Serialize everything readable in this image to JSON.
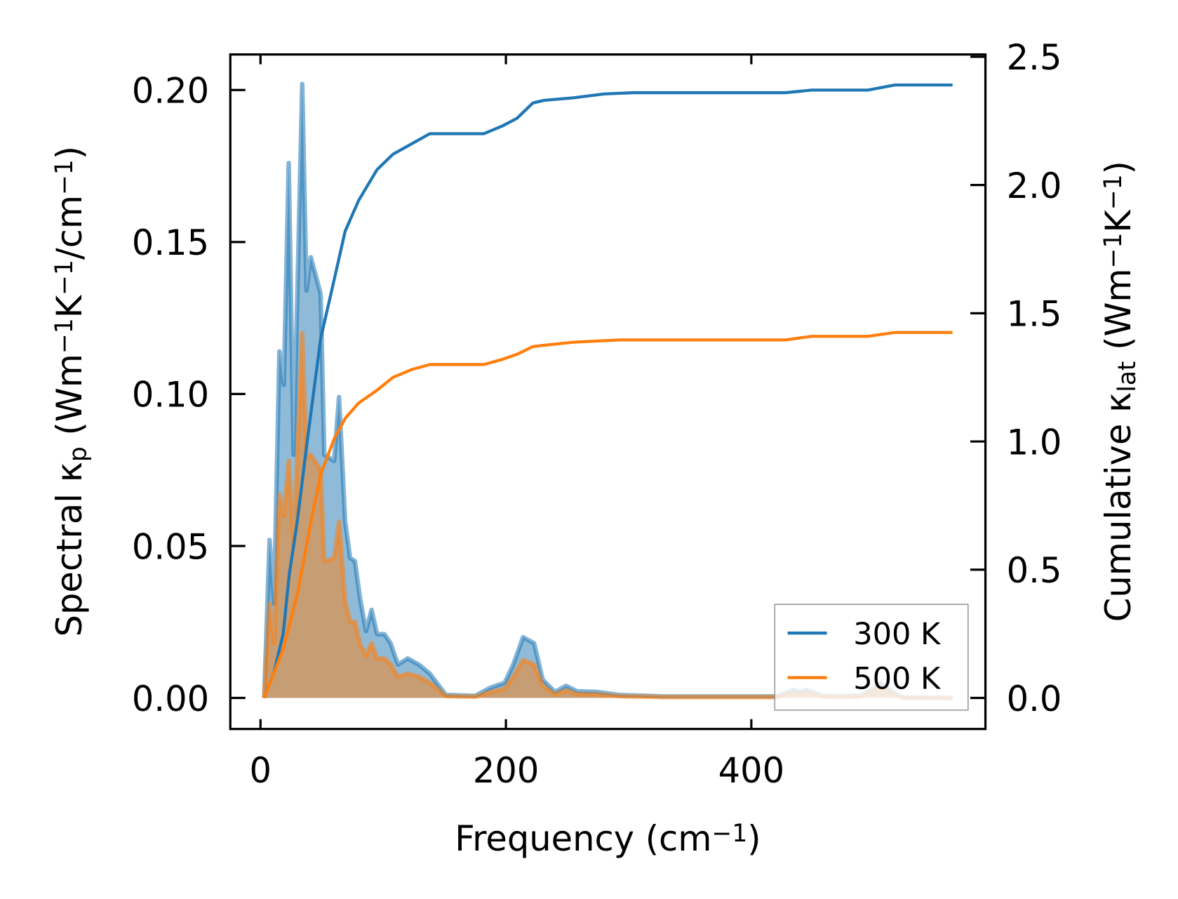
{
  "chart_data": {
    "type": "line",
    "title": "",
    "xlabel": [
      {
        "t": "Frequency (cm"
      },
      {
        "t": "−1",
        "s": "sup"
      },
      {
        "t": ")"
      }
    ],
    "ylabel_left": [
      {
        "t": "Spectral κ"
      },
      {
        "t": "p",
        "s": "sub"
      },
      {
        "t": " (Wm"
      },
      {
        "t": "−1",
        "s": "sup"
      },
      {
        "t": "K"
      },
      {
        "t": "−1",
        "s": "sup"
      },
      {
        "t": "/cm"
      },
      {
        "t": "−1",
        "s": "sup"
      },
      {
        "t": ")"
      }
    ],
    "ylabel_right": [
      {
        "t": "Cumulative κ"
      },
      {
        "t": "lat",
        "s": "sub"
      },
      {
        "t": " (Wm"
      },
      {
        "t": "−1",
        "s": "sup"
      },
      {
        "t": "K"
      },
      {
        "t": "−1",
        "s": "sup"
      },
      {
        "t": ")"
      }
    ],
    "xlim": [
      -24.6,
      590.8
    ],
    "ylim_left": [
      -0.0102,
      0.2117
    ],
    "ylim_right": [
      -0.121,
      2.509
    ],
    "xticks": [
      0,
      200,
      400
    ],
    "xtick_labels": [
      "0",
      "200",
      "400"
    ],
    "yticks_left": [
      0,
      0.05,
      0.1,
      0.15,
      0.2
    ],
    "ytick_labels_left": [
      "0.00",
      "0.05",
      "0.10",
      "0.15",
      "0.20"
    ],
    "yticks_right": [
      0,
      0.5,
      1.0,
      1.5,
      2.0,
      2.5
    ],
    "ytick_labels_right": [
      "0.0",
      "0.5",
      "1.0",
      "1.5",
      "2.0",
      "2.5"
    ],
    "legend": {
      "placement": "lower-right",
      "entries": [
        "300 K",
        "500 K"
      ]
    },
    "colors": {
      "300 K": "#1f77b4",
      "500 K": "#ff7f0e"
    },
    "spectral_x": [
      3,
      7.4,
      11,
      15.4,
      19,
      23,
      27,
      34,
      37.5,
      41,
      49,
      52,
      60,
      64,
      69,
      73,
      77,
      81,
      86,
      90.5,
      95,
      101,
      106,
      112,
      120,
      129,
      138,
      151,
      175,
      188,
      199,
      206,
      214,
      223,
      230,
      240,
      249,
      258,
      274,
      292,
      329,
      421,
      434,
      440,
      445,
      458,
      489,
      506,
      517,
      523,
      564
    ],
    "series": [
      {
        "name": "300 K",
        "axis": "left",
        "kind": "spectral",
        "values": [
          0,
          0.052,
          0.031,
          0.114,
          0.103,
          0.176,
          0.08,
          0.202,
          0.134,
          0.145,
          0.133,
          0.08,
          0.078,
          0.099,
          0.058,
          0.046,
          0.045,
          0.033,
          0.022,
          0.029,
          0.021,
          0.021,
          0.018,
          0.011,
          0.013,
          0.011,
          0.008,
          0.001,
          0.0007,
          0.0035,
          0.005,
          0.011,
          0.02,
          0.018,
          0.006,
          0.002,
          0.004,
          0.0022,
          0.002,
          0.001,
          0.0005,
          0.0005,
          0.0027,
          0.002,
          0.0027,
          0.0007,
          0.0007,
          0.0047,
          0.0015,
          0.0002,
          0
        ]
      },
      {
        "name": "500 K",
        "axis": "left",
        "kind": "spectral",
        "values": [
          0,
          0.031,
          0.018,
          0.067,
          0.06,
          0.078,
          0.05,
          0.12,
          0.079,
          0.08,
          0.075,
          0.045,
          0.046,
          0.058,
          0.032,
          0.025,
          0.025,
          0.018,
          0.014,
          0.018,
          0.013,
          0.013,
          0.011,
          0.007,
          0.008,
          0.007,
          0.005,
          0.0006,
          0.0004,
          0.002,
          0.003,
          0.007,
          0.0125,
          0.011,
          0.004,
          0.0012,
          0.0025,
          0.0013,
          0.0012,
          0.0006,
          0.0003,
          0.0003,
          0.0017,
          0.0012,
          0.0017,
          0.0004,
          0.0004,
          0.0035,
          0.001,
          0.0001,
          0
        ]
      },
      {
        "name": "300 K",
        "axis": "right",
        "kind": "cumulative",
        "x": [
          3,
          11,
          18.5,
          23.4,
          30,
          37.5,
          49,
          60,
          69,
          80,
          95,
          108,
          123,
          138,
          151,
          182,
          197,
          209,
          222,
          231,
          255,
          280,
          304,
          428,
          449,
          495,
          517,
          564
        ],
        "values": [
          0,
          0.1,
          0.25,
          0.48,
          0.69,
          0.98,
          1.4,
          1.63,
          1.82,
          1.94,
          2.06,
          2.12,
          2.16,
          2.2,
          2.2,
          2.2,
          2.23,
          2.26,
          2.32,
          2.33,
          2.34,
          2.355,
          2.36,
          2.36,
          2.37,
          2.37,
          2.39,
          2.39
        ]
      },
      {
        "name": "500 K",
        "axis": "right",
        "kind": "cumulative",
        "x": [
          3,
          18.5,
          30.8,
          40,
          49,
          60,
          69,
          80,
          95,
          108,
          123,
          138,
          182,
          197,
          209,
          222,
          231,
          255,
          292,
          428,
          449,
          495,
          517,
          564
        ],
        "values": [
          0,
          0.19,
          0.42,
          0.66,
          0.87,
          1.01,
          1.09,
          1.15,
          1.2,
          1.25,
          1.28,
          1.3,
          1.3,
          1.32,
          1.34,
          1.37,
          1.375,
          1.387,
          1.396,
          1.396,
          1.41,
          1.41,
          1.425,
          1.425
        ]
      }
    ]
  }
}
